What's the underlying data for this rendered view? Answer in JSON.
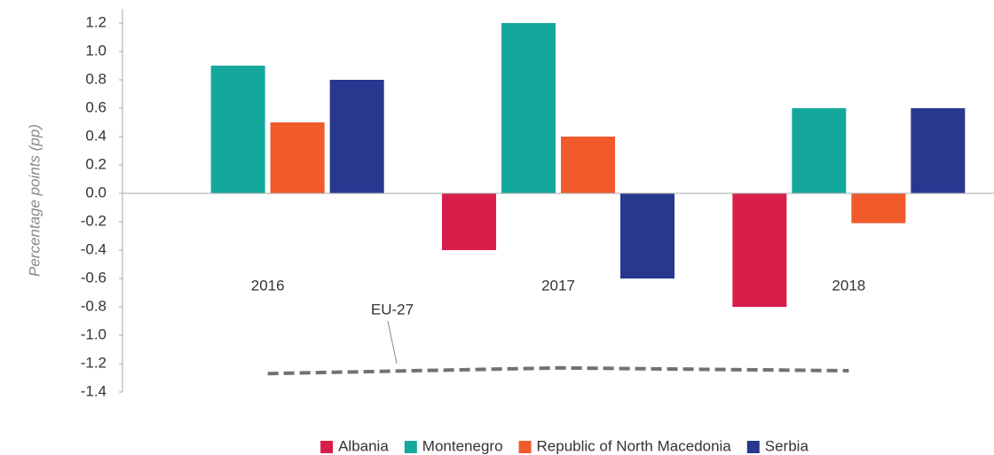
{
  "chart_data": {
    "type": "bar",
    "y_label": "Percentage points (pp)",
    "categories": [
      "2016",
      "2017",
      "2018"
    ],
    "series": [
      {
        "name": "Albania",
        "color": "#d81e4a",
        "values": [
          null,
          -0.4,
          -0.8
        ]
      },
      {
        "name": "Montenegro",
        "color": "#14a89c",
        "values": [
          0.9,
          1.2,
          0.6
        ]
      },
      {
        "name": "Republic of North Macedonia",
        "color": "#f15a2b",
        "values": [
          0.5,
          0.4,
          -0.21
        ]
      },
      {
        "name": "Serbia",
        "color": "#28388f",
        "values": [
          0.8,
          -0.6,
          0.6
        ]
      },
      {
        "name": "EU-27",
        "type": "line",
        "dashed": true,
        "color": "#6d7278",
        "values": [
          -1.27,
          -1.23,
          -1.25
        ]
      }
    ],
    "ylim": [
      -1.4,
      1.2
    ],
    "yticks": [
      1.2,
      {
        "value": 1,
        "label": "1.0"
      },
      0.8,
      0.6,
      0.4,
      0.2,
      {
        "value": 0,
        "label": "0.0"
      },
      -0.2,
      -0.4,
      -0.6,
      -0.8,
      {
        "value": -1,
        "label": "-1.0"
      },
      -1.2,
      -1.4
    ],
    "legend": "bottom"
  }
}
